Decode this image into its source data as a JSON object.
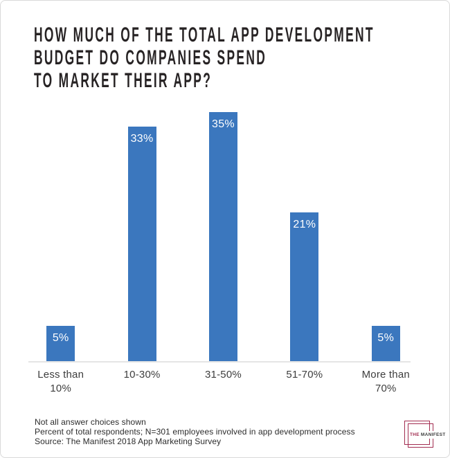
{
  "page": {
    "title_lines": [
      "HOW MUCH OF THE TOTAL APP DEVELOPMENT",
      "BUDGET DO COMPANIES SPEND",
      "TO MARKET THEIR APP?"
    ],
    "notes": [
      "Not all answer choices shown",
      "Percent of total respondents; N=301 employees involved in app development process",
      "Source: The Manifest 2018 App Marketing Survey"
    ],
    "logo": {
      "the": "THE",
      "manifest": "MANIFEST"
    }
  },
  "colors": {
    "bar": "#3b77be",
    "bar_label": "#ffffff",
    "axis_line": "#e5e5e5",
    "title": "#272324",
    "category_label": "#3d3d3d",
    "notes_text": "#2b2b2b",
    "logo_berry": "#a22c50",
    "logo_dark": "#3b3b3b",
    "card_border": "#d9d9d9"
  },
  "chart_data": {
    "type": "bar",
    "title": "How much of the total app development budget do companies spend to market their app?",
    "categories": [
      "Less than 10%",
      "10-30%",
      "31-50%",
      "51-70%",
      "More than 70%"
    ],
    "category_label_lines": [
      [
        "Less than",
        "10%"
      ],
      [
        "10-30%"
      ],
      [
        "31-50%"
      ],
      [
        "51-70%"
      ],
      [
        "More than",
        "70%"
      ]
    ],
    "values": [
      5,
      33,
      35,
      21,
      5
    ],
    "value_labels": [
      "5%",
      "33%",
      "35%",
      "21%",
      "5%"
    ],
    "series_name": "Percent of total respondents",
    "xlabel": "",
    "ylabel": "",
    "ylim": [
      0,
      36
    ],
    "grid": false,
    "legend": false,
    "value_labels_position": "inside-top",
    "bar_color": "#3b77be"
  }
}
